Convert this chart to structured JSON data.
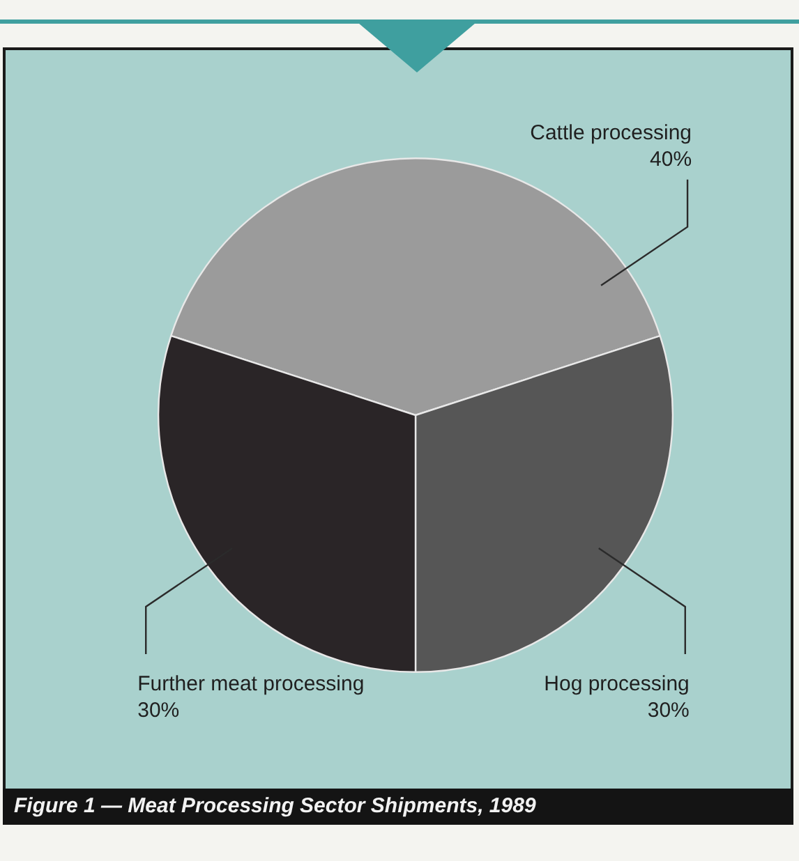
{
  "chart_data": {
    "type": "pie",
    "title": "Figure 1 — Meat Processing Sector Shipments, 1989",
    "categories": [
      "Cattle processing",
      "Hog processing",
      "Further meat processing"
    ],
    "values": [
      40,
      30,
      30
    ],
    "value_labels": [
      "40%",
      "30%",
      "30%"
    ],
    "colors": [
      "#9b9b9b",
      "#565656",
      "#2a2527"
    ],
    "legend": false
  }
}
